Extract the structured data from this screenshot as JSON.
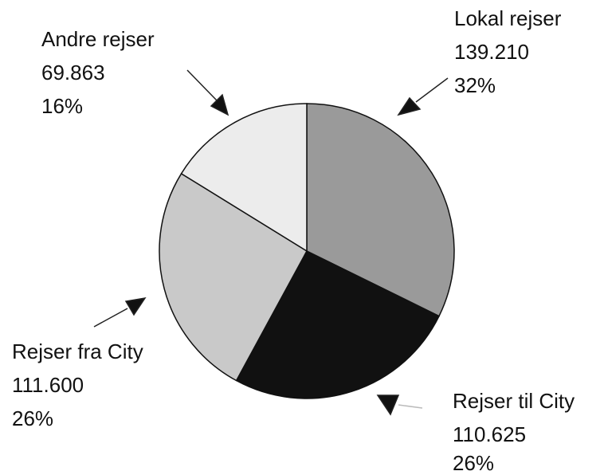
{
  "chart_data": {
    "type": "pie",
    "categories": [
      "Lokal rejser",
      "Rejser til City",
      "Rejser fra City",
      "Andre rejser"
    ],
    "values": [
      139210,
      110625,
      111600,
      69863
    ],
    "value_labels": [
      "139.210",
      "110.625",
      "111.600",
      "69.863"
    ],
    "share_labels": [
      "32%",
      "26%",
      "26%",
      "16%"
    ],
    "colors": [
      "#9a9a9a",
      "#111111",
      "#c9c9c9",
      "#ececec"
    ]
  }
}
